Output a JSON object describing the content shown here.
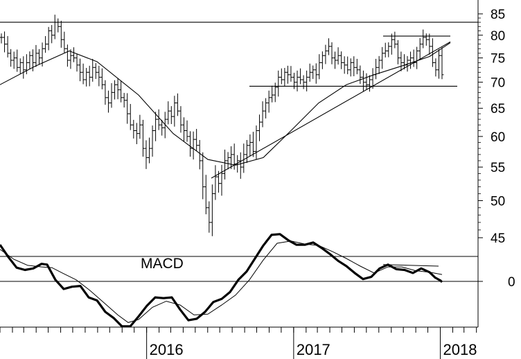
{
  "chart_data": [
    {
      "type": "ohlc",
      "scale": "log",
      "ylim": [
        41,
        87
      ],
      "yticks": [
        45,
        50,
        55,
        60,
        65,
        70,
        75,
        80,
        85
      ],
      "tick_labels": [
        "45",
        "50",
        "55",
        "60",
        "65",
        "70",
        "75",
        "80",
        "85"
      ],
      "x_range": [
        "2015-01-01",
        "2018-04-05"
      ],
      "x_ticks": [
        "2016-01-01",
        "2017-01-01",
        "2018-01-01"
      ],
      "x_tick_labels": [
        "2016",
        "2017",
        "2018"
      ],
      "weekly_closes": [
        79.5,
        78,
        76,
        74.5,
        75,
        73,
        74,
        72.5,
        74,
        75.5,
        74,
        76,
        75,
        77,
        78,
        81,
        80,
        83,
        82,
        79,
        77,
        74.5,
        75.5,
        75,
        73.5,
        72,
        70.5,
        72,
        71,
        73,
        72,
        71,
        69.5,
        67,
        66,
        68,
        69.5,
        68.5,
        67,
        66.5,
        64,
        62,
        61,
        60.5,
        62,
        58,
        56.5,
        58,
        61,
        63,
        62,
        61.5,
        63,
        64.5,
        63.5,
        66,
        64.5,
        62,
        61,
        60,
        58,
        59.5,
        58.5,
        56,
        52,
        49,
        47,
        51,
        53.5,
        52.5,
        54,
        56,
        56.5,
        57,
        55.5,
        56,
        55,
        57,
        58.5,
        59,
        57.5,
        61,
        62.5,
        64.5,
        66,
        67,
        67.5,
        69,
        71,
        70.5,
        72,
        71.5,
        71,
        70,
        71,
        70.5,
        70,
        71,
        72,
        72.5,
        71.5,
        74,
        75.5,
        76.5,
        77.5,
        75,
        74.5,
        75.5,
        74,
        73.5,
        72.5,
        74,
        73,
        72.5,
        71,
        70,
        69.5,
        70.5,
        71.5,
        73,
        74.5,
        76,
        76.5,
        77.5,
        79,
        78,
        75,
        74,
        73.5,
        74.5,
        75,
        74,
        76.5,
        78,
        79.5,
        79,
        77.5,
        74,
        72.5,
        75.5,
        71.5
      ],
      "moving_average": [
        [
          0,
          69.5
        ],
        [
          50,
          73.2
        ],
        [
          100,
          76.5
        ],
        [
          140,
          74.2
        ],
        [
          200,
          67.5
        ],
        [
          250,
          60.5
        ],
        [
          300,
          56.2
        ],
        [
          340,
          55.3
        ],
        [
          380,
          56.5
        ],
        [
          420,
          61
        ],
        [
          460,
          66
        ],
        [
          500,
          69.5
        ],
        [
          540,
          71.5
        ],
        [
          580,
          73.3
        ],
        [
          620,
          75.3
        ],
        [
          650,
          78.3
        ]
      ],
      "trendlines": [
        {
          "kind": "support",
          "from": [
            305,
            53.3
          ],
          "to": [
            650,
            78.5
          ]
        },
        {
          "kind": "horizontal",
          "value": 83,
          "from_x": 0,
          "to_x": 690
        },
        {
          "kind": "horizontal",
          "value": 69.2,
          "from_x": 360,
          "to_x": 660
        },
        {
          "kind": "horizontal",
          "value": 79.8,
          "from_x": 553,
          "to_x": 650
        }
      ]
    },
    {
      "type": "line",
      "title": "MACD",
      "yticks": [
        0
      ],
      "tick_labels": [
        "0"
      ],
      "series": [
        {
          "style": "thick",
          "values": [
            [
              0,
              2.4
            ],
            [
              12,
              1.6
            ],
            [
              24,
              0.9
            ],
            [
              36,
              0.75
            ],
            [
              48,
              0.85
            ],
            [
              60,
              1.15
            ],
            [
              68,
              1.1
            ],
            [
              80,
              0.1
            ],
            [
              92,
              -0.5
            ],
            [
              104,
              -0.35
            ],
            [
              116,
              -0.3
            ],
            [
              128,
              -1.05
            ],
            [
              140,
              -1.25
            ],
            [
              152,
              -2.0
            ],
            [
              164,
              -2.4
            ],
            [
              176,
              -2.95
            ],
            [
              188,
              -2.95
            ],
            [
              200,
              -2.3
            ],
            [
              212,
              -1.6
            ],
            [
              224,
              -1.05
            ],
            [
              236,
              -1.1
            ],
            [
              248,
              -1.05
            ],
            [
              260,
              -1.85
            ],
            [
              272,
              -2.55
            ],
            [
              284,
              -2.45
            ],
            [
              296,
              -2.0
            ],
            [
              308,
              -1.35
            ],
            [
              320,
              -1.15
            ],
            [
              332,
              -0.7
            ],
            [
              344,
              0.1
            ],
            [
              356,
              0.65
            ],
            [
              368,
              1.5
            ],
            [
              380,
              2.35
            ],
            [
              392,
              3.05
            ],
            [
              404,
              3.1
            ],
            [
              416,
              2.7
            ],
            [
              428,
              2.4
            ],
            [
              440,
              2.4
            ],
            [
              452,
              2.55
            ],
            [
              464,
              2.2
            ],
            [
              476,
              1.8
            ],
            [
              488,
              1.35
            ],
            [
              500,
              1.0
            ],
            [
              512,
              0.55
            ],
            [
              524,
              0.15
            ],
            [
              536,
              0.3
            ],
            [
              548,
              0.85
            ],
            [
              560,
              1.1
            ],
            [
              572,
              0.8
            ],
            [
              584,
              0.75
            ],
            [
              596,
              0.55
            ],
            [
              608,
              0.85
            ],
            [
              620,
              0.6
            ],
            [
              628,
              0.25
            ],
            [
              636,
              0.05
            ],
            [
              638,
              -0.05
            ]
          ]
        },
        {
          "style": "thin",
          "values": [
            [
              0,
              2.1
            ],
            [
              20,
              1.45
            ],
            [
              40,
              1.05
            ],
            [
              60,
              0.95
            ],
            [
              75,
              0.9
            ],
            [
              90,
              0.55
            ],
            [
              110,
              0.1
            ],
            [
              130,
              -0.6
            ],
            [
              150,
              -1.4
            ],
            [
              170,
              -2.2
            ],
            [
              185,
              -2.7
            ],
            [
              200,
              -2.5
            ],
            [
              220,
              -1.7
            ],
            [
              240,
              -1.3
            ],
            [
              260,
              -1.55
            ],
            [
              280,
              -2.2
            ],
            [
              300,
              -2.15
            ],
            [
              320,
              -1.55
            ],
            [
              340,
              -0.9
            ],
            [
              360,
              0.1
            ],
            [
              380,
              1.4
            ],
            [
              400,
              2.5
            ],
            [
              420,
              2.65
            ],
            [
              440,
              2.45
            ],
            [
              460,
              2.35
            ],
            [
              480,
              1.95
            ],
            [
              500,
              1.5
            ],
            [
              520,
              1.0
            ],
            [
              540,
              0.55
            ],
            [
              560,
              0.95
            ],
            [
              580,
              0.95
            ],
            [
              600,
              0.7
            ],
            [
              620,
              0.6
            ],
            [
              638,
              0.45
            ]
          ]
        }
      ],
      "trendlines": [
        {
          "kind": "resistance",
          "from": [
            553,
            1.1
          ],
          "to": [
            633,
            1.0
          ]
        }
      ]
    }
  ],
  "labels": {
    "macd": "MACD",
    "y2_zero": "0"
  }
}
